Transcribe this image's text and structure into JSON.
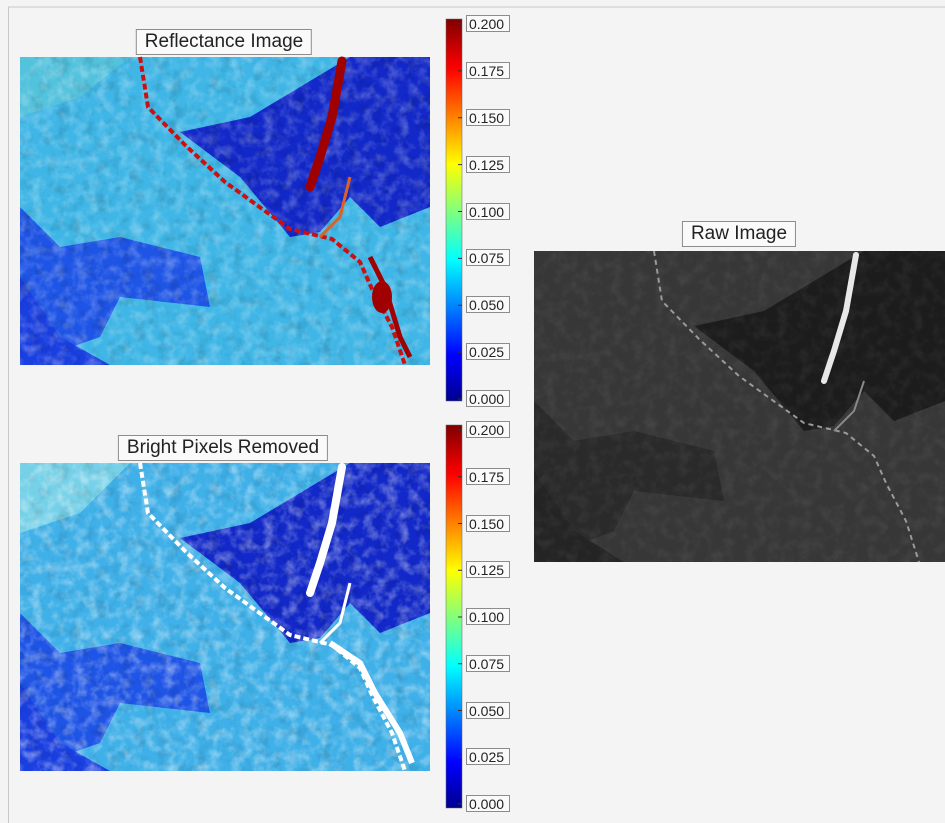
{
  "panels": [
    {
      "title": "Reflectance Image",
      "colorbar": {
        "ticks": [
          {
            "value": 0,
            "label": "0.000"
          },
          {
            "value": 0.025,
            "label": "0.025"
          },
          {
            "value": 0.05,
            "label": "0.050"
          },
          {
            "value": 0.075,
            "label": "0.075"
          },
          {
            "value": 0.1,
            "label": "0.100"
          },
          {
            "value": 0.125,
            "label": "0.125"
          },
          {
            "value": 0.15,
            "label": "0.150"
          },
          {
            "value": 0.175,
            "label": "0.175"
          },
          {
            "value": 0.2,
            "label": "0.200"
          }
        ]
      }
    },
    {
      "title": "Bright Pixels Removed",
      "colorbar": {
        "ticks": [
          {
            "value": 0,
            "label": "0.000"
          },
          {
            "value": 0.025,
            "label": "0.025"
          },
          {
            "value": 0.05,
            "label": "0.050"
          },
          {
            "value": 0.075,
            "label": "0.075"
          },
          {
            "value": 0.1,
            "label": "0.100"
          },
          {
            "value": 0.125,
            "label": "0.125"
          },
          {
            "value": 0.15,
            "label": "0.150"
          },
          {
            "value": 0.175,
            "label": "0.175"
          },
          {
            "value": 0.2,
            "label": "0.200"
          }
        ]
      }
    }
  ],
  "raw": {
    "title": "Raw Image"
  }
}
